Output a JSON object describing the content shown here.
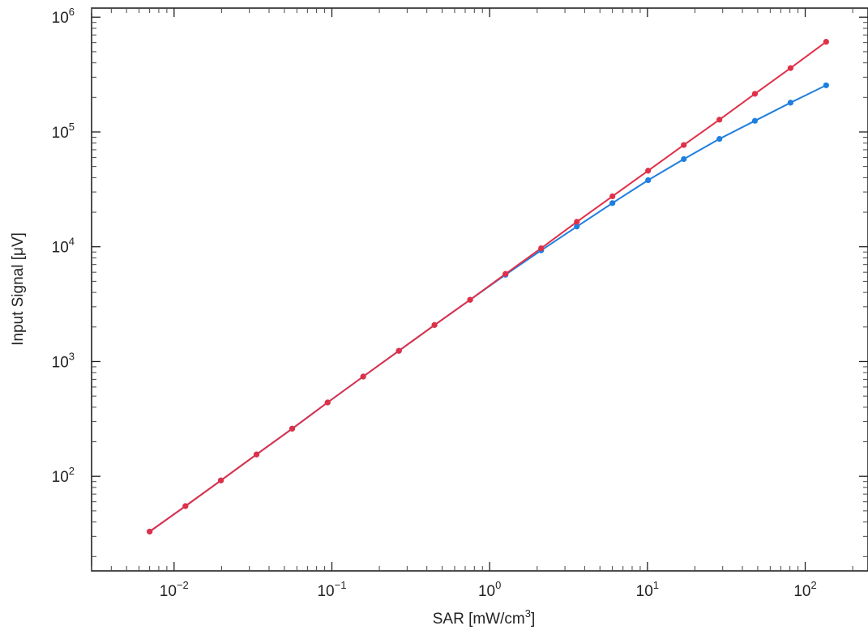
{
  "chart_data": {
    "type": "line",
    "title": "",
    "xlabel": {
      "text": "SAR [mW/cm",
      "sup": "3",
      "suffix": "]"
    },
    "ylabel": "Input Signal [μV]",
    "x_scale": "log",
    "y_scale": "log",
    "xlim": [
      0.003,
      250
    ],
    "ylim": [
      15,
      1200000
    ],
    "x_ticks": [
      {
        "base": "10",
        "exp": "−2",
        "value": 0.01
      },
      {
        "base": "10",
        "exp": "−1",
        "value": 0.1
      },
      {
        "base": "10",
        "exp": "0",
        "value": 1
      },
      {
        "base": "10",
        "exp": "1",
        "value": 10
      },
      {
        "base": "10",
        "exp": "2",
        "value": 100
      }
    ],
    "y_ticks": [
      {
        "base": "10",
        "exp": "2",
        "value": 100
      },
      {
        "base": "10",
        "exp": "3",
        "value": 1000
      },
      {
        "base": "10",
        "exp": "4",
        "value": 10000
      },
      {
        "base": "10",
        "exp": "5",
        "value": 100000
      },
      {
        "base": "10",
        "exp": "6",
        "value": 1000000
      }
    ],
    "grid": false,
    "legend": "none",
    "series": [
      {
        "color": "#1f7fe0",
        "x": [
          0.007,
          0.0118,
          0.0198,
          0.0333,
          0.056,
          0.094,
          0.158,
          0.266,
          0.447,
          0.752,
          1.26,
          2.12,
          3.57,
          6.0,
          10.1,
          17.0,
          28.6,
          48.0,
          80.7,
          135.7
        ],
        "y": [
          33,
          55,
          92,
          155,
          260,
          440,
          740,
          1240,
          2080,
          3450,
          5700,
          9300,
          15000,
          24000,
          38000,
          58000,
          87000,
          125000,
          180000,
          255000
        ]
      },
      {
        "color": "#e03048",
        "x": [
          0.007,
          0.0118,
          0.0198,
          0.0333,
          0.056,
          0.094,
          0.158,
          0.266,
          0.447,
          0.752,
          1.26,
          2.12,
          3.57,
          6.0,
          10.1,
          17.0,
          28.6,
          48.0,
          80.7,
          135.7
        ],
        "y": [
          33,
          55,
          92,
          155,
          260,
          440,
          740,
          1240,
          2080,
          3450,
          5800,
          9700,
          16500,
          27500,
          46000,
          77000,
          128000,
          215000,
          360000,
          610000
        ]
      }
    ]
  }
}
